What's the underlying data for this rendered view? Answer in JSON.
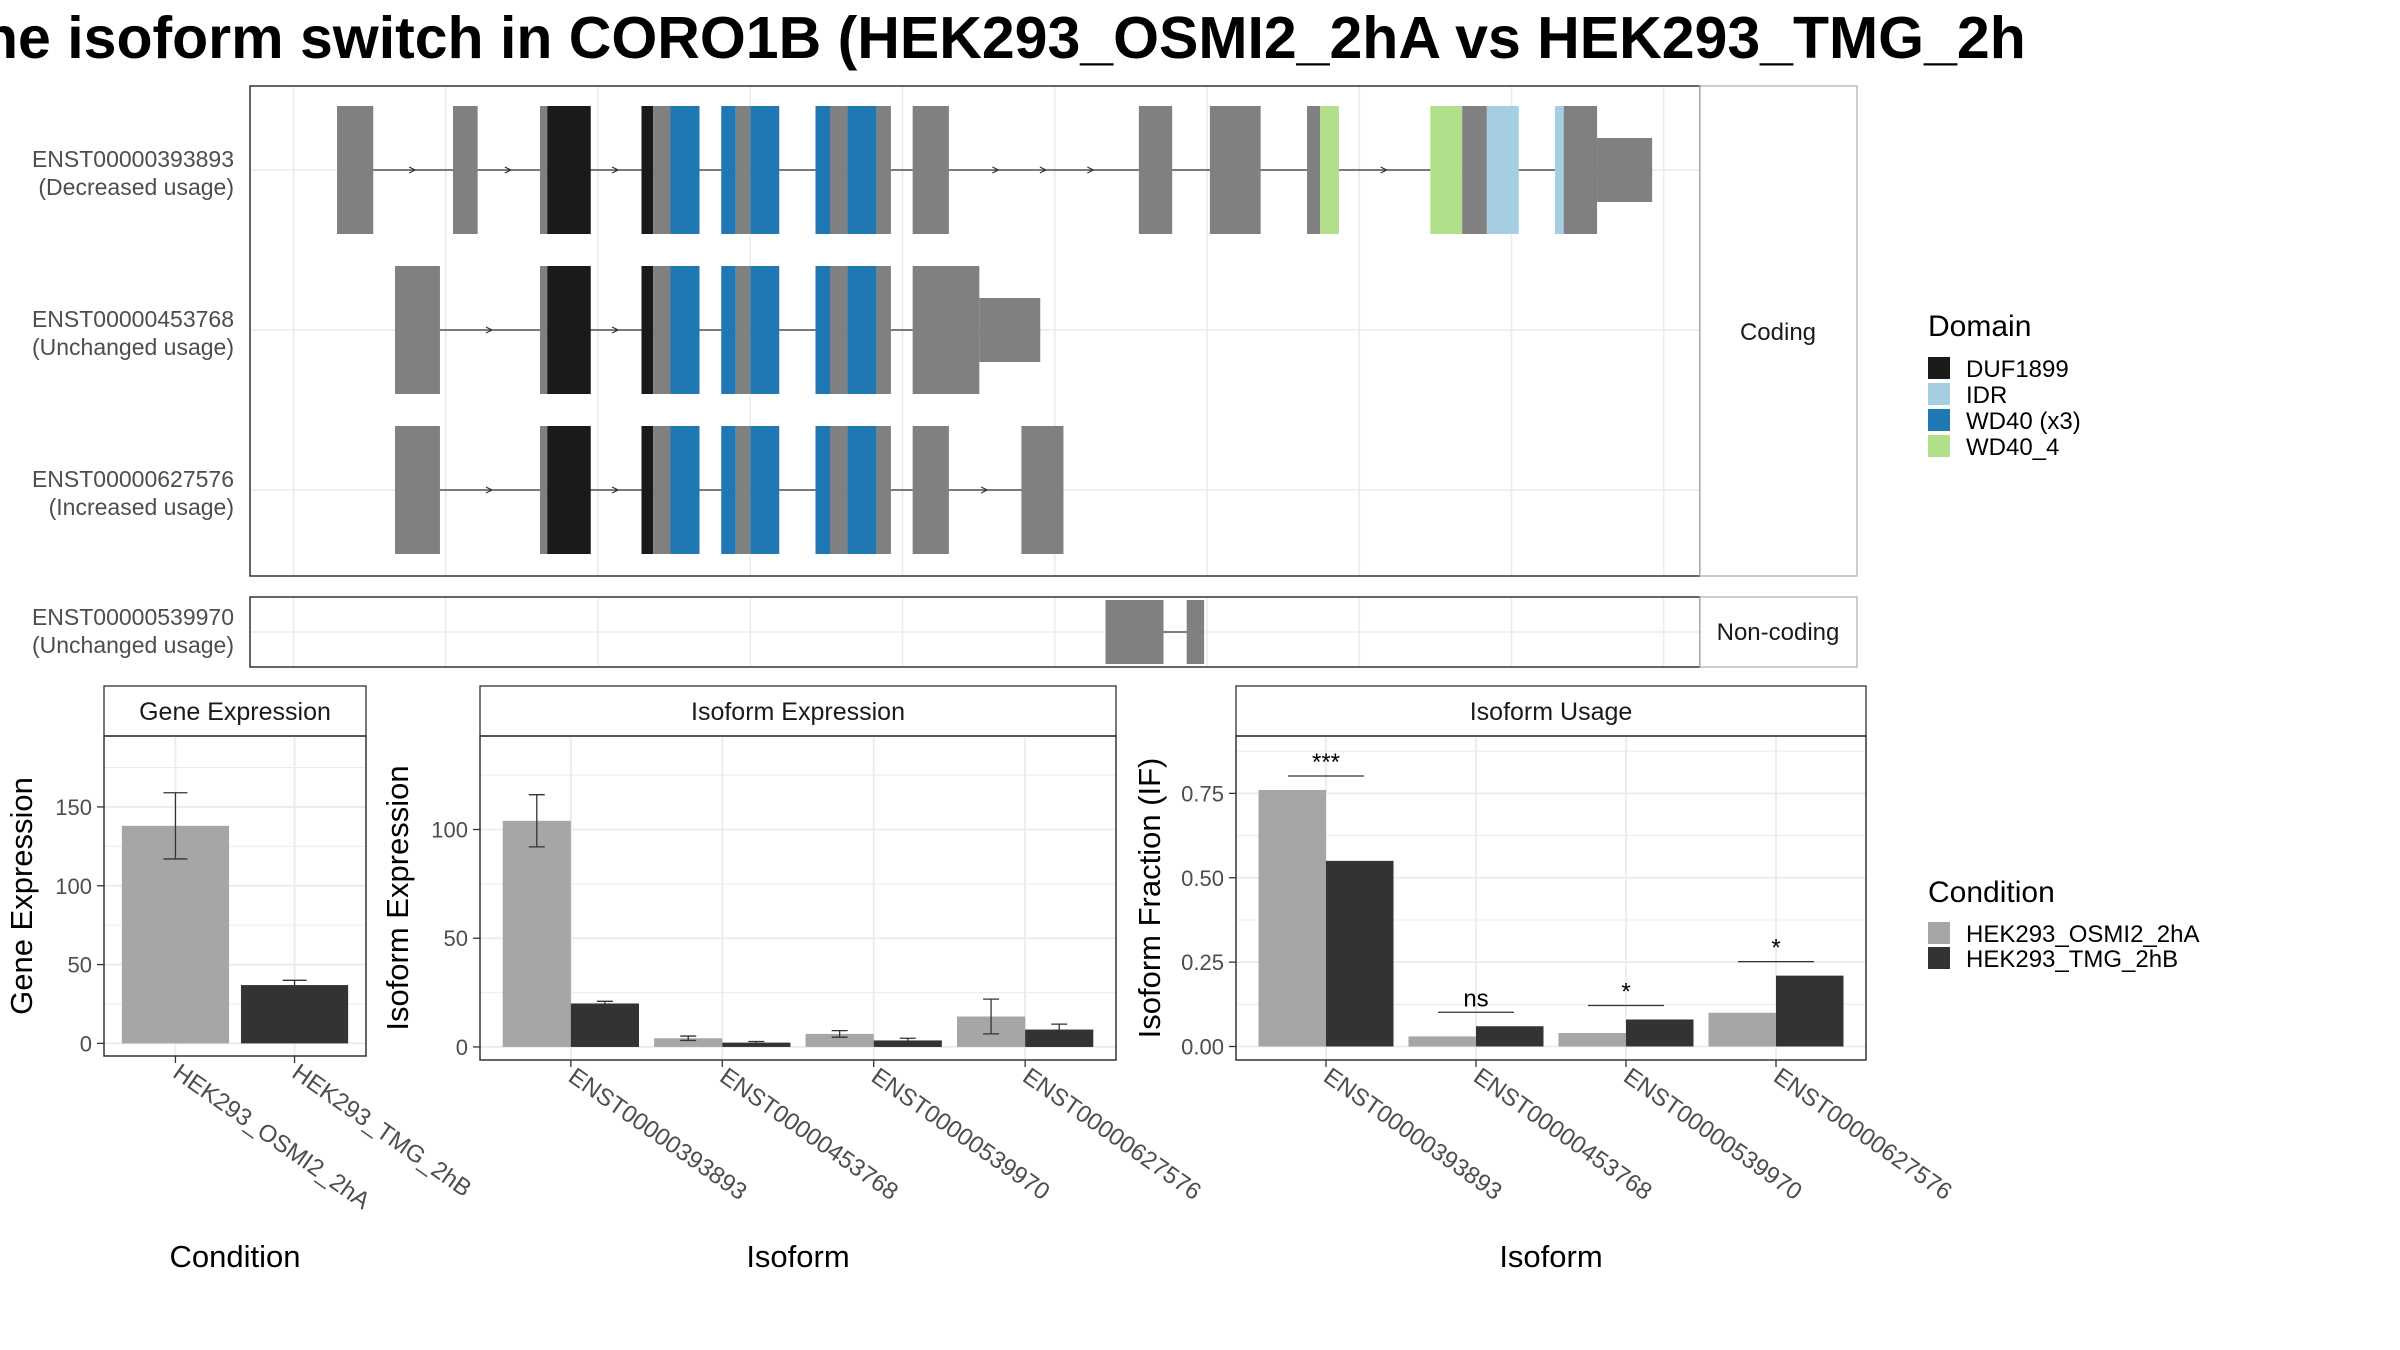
{
  "title": "ne isoform switch in CORO1B (HEK293_OSMI2_2hA vs HEK293_TMG_2h",
  "colors": {
    "utr": "#808080",
    "DUF1899": "#1a1a1a",
    "IDR": "#a6cee3",
    "WD40 (x3)": "#1f78b4",
    "WD40_4": "#b2df8a",
    "cond1": "#a6a6a6",
    "cond2": "#333333",
    "strip_bg": "#ffffff",
    "grid": "#ebebeb"
  },
  "structure": {
    "facets": [
      {
        "label": "Coding",
        "rows": [
          {
            "name": "ENST00000393893",
            "status": "(Decreased usage)"
          },
          {
            "name": "ENST00000453768",
            "status": "(Unchanged usage)"
          },
          {
            "name": "ENST00000627576",
            "status": "(Increased usage)"
          }
        ]
      },
      {
        "label": "Non-coding",
        "rows": [
          {
            "name": "ENST00000539970",
            "status": "(Unchanged usage)"
          }
        ]
      }
    ],
    "transcripts": [
      {
        "id": "ENST00000393893",
        "exons": [
          [
            0.06,
            0.085,
            "u"
          ],
          [
            0.14,
            0.157,
            "u"
          ],
          [
            0.2,
            0.205,
            "u"
          ],
          [
            0.205,
            0.235,
            "d"
          ],
          [
            0.27,
            0.278,
            "d"
          ],
          [
            0.278,
            0.29,
            "u"
          ],
          [
            0.29,
            0.31,
            "w"
          ],
          [
            0.325,
            0.335,
            "w"
          ],
          [
            0.335,
            0.345,
            "u"
          ],
          [
            0.345,
            0.365,
            "w"
          ],
          [
            0.39,
            0.4,
            "w"
          ],
          [
            0.4,
            0.412,
            "u"
          ],
          [
            0.412,
            0.432,
            "w"
          ],
          [
            0.432,
            0.442,
            "u"
          ],
          [
            0.457,
            0.482,
            "u"
          ],
          [
            0.613,
            0.636,
            "u"
          ],
          [
            0.662,
            0.697,
            "u"
          ],
          [
            0.729,
            0.738,
            "u"
          ],
          [
            0.738,
            0.751,
            "g"
          ],
          [
            0.814,
            0.836,
            "g"
          ],
          [
            0.836,
            0.853,
            "u"
          ],
          [
            0.853,
            0.875,
            "i"
          ],
          [
            0.9,
            0.906,
            "i"
          ],
          [
            0.906,
            0.929,
            "u"
          ],
          [
            0.929,
            0.967,
            "u3"
          ]
        ]
      },
      {
        "id": "ENST00000453768",
        "exons": [
          [
            0.1,
            0.131,
            "u"
          ],
          [
            0.2,
            0.205,
            "u"
          ],
          [
            0.205,
            0.235,
            "d"
          ],
          [
            0.27,
            0.278,
            "d"
          ],
          [
            0.278,
            0.29,
            "u"
          ],
          [
            0.29,
            0.31,
            "w"
          ],
          [
            0.325,
            0.335,
            "w"
          ],
          [
            0.335,
            0.345,
            "u"
          ],
          [
            0.345,
            0.365,
            "w"
          ],
          [
            0.39,
            0.4,
            "w"
          ],
          [
            0.4,
            0.412,
            "u"
          ],
          [
            0.412,
            0.432,
            "w"
          ],
          [
            0.432,
            0.442,
            "u"
          ],
          [
            0.457,
            0.503,
            "u"
          ],
          [
            0.503,
            0.545,
            "u3"
          ]
        ]
      },
      {
        "id": "ENST00000627576",
        "exons": [
          [
            0.1,
            0.131,
            "u"
          ],
          [
            0.2,
            0.205,
            "u"
          ],
          [
            0.205,
            0.235,
            "d"
          ],
          [
            0.27,
            0.278,
            "d"
          ],
          [
            0.278,
            0.29,
            "u"
          ],
          [
            0.29,
            0.31,
            "w"
          ],
          [
            0.325,
            0.335,
            "w"
          ],
          [
            0.335,
            0.345,
            "u"
          ],
          [
            0.345,
            0.365,
            "w"
          ],
          [
            0.39,
            0.4,
            "w"
          ],
          [
            0.4,
            0.412,
            "u"
          ],
          [
            0.412,
            0.432,
            "w"
          ],
          [
            0.432,
            0.442,
            "u"
          ],
          [
            0.457,
            0.482,
            "u"
          ],
          [
            0.532,
            0.561,
            "u"
          ]
        ]
      },
      {
        "id": "ENST00000539970",
        "exons": [
          [
            0.59,
            0.63,
            "u"
          ],
          [
            0.646,
            0.658,
            "u"
          ]
        ]
      }
    ]
  },
  "legends": {
    "domain": {
      "title": "Domain",
      "items": [
        "DUF1899",
        "IDR",
        "WD40 (x3)",
        "WD40_4"
      ]
    },
    "condition": {
      "title": "Condition",
      "items": [
        "HEK293_OSMI2_2hA",
        "HEK293_TMG_2hB"
      ]
    }
  },
  "chart_data": [
    {
      "type": "bar",
      "title": "Gene Expression",
      "xlabel": "Condition",
      "ylabel": "Gene Expression",
      "categories": [
        "HEK293_OSMI2_2hA",
        "HEK293_TMG_2hB"
      ],
      "values": [
        138,
        37
      ],
      "errors": [
        [
          117,
          159
        ],
        [
          34,
          40
        ]
      ],
      "ylim": [
        -8,
        195
      ],
      "yticks": [
        0,
        50,
        100,
        150
      ]
    },
    {
      "type": "bar",
      "title": "Isoform Expression",
      "xlabel": "Isoform",
      "ylabel": "Isoform Expression",
      "categories": [
        "ENST00000393893",
        "ENST00000453768",
        "ENST00000539970",
        "ENST00000627576"
      ],
      "series": [
        {
          "name": "HEK293_OSMI2_2hA",
          "values": [
            104,
            4,
            6,
            14
          ],
          "errors": [
            [
              92,
              116
            ],
            [
              3,
              5
            ],
            [
              4.5,
              7.5
            ],
            [
              6,
              22
            ]
          ]
        },
        {
          "name": "HEK293_TMG_2hB",
          "values": [
            20,
            2,
            3,
            8
          ],
          "errors": [
            [
              19,
              21
            ],
            [
              1.5,
              2.5
            ],
            [
              2,
              4
            ],
            [
              5.5,
              10.5
            ]
          ]
        }
      ],
      "ylim": [
        -6,
        143
      ],
      "yticks": [
        0,
        50,
        100
      ]
    },
    {
      "type": "bar",
      "title": "Isoform Usage",
      "xlabel": "Isoform",
      "ylabel": "Isoform Fraction (IF)",
      "categories": [
        "ENST00000393893",
        "ENST00000453768",
        "ENST00000539970",
        "ENST00000627576"
      ],
      "series": [
        {
          "name": "HEK293_OSMI2_2hA",
          "values": [
            0.76,
            0.03,
            0.04,
            0.1
          ]
        },
        {
          "name": "HEK293_TMG_2hB",
          "values": [
            0.55,
            0.06,
            0.08,
            0.21
          ]
        }
      ],
      "significance": [
        "***",
        "ns",
        "*",
        "*"
      ],
      "ylim": [
        -0.04,
        0.92
      ],
      "yticks": [
        0.0,
        0.25,
        0.5,
        0.75
      ],
      "ytick_labels": [
        "0.00",
        "0.25",
        "0.50",
        "0.75"
      ]
    }
  ]
}
